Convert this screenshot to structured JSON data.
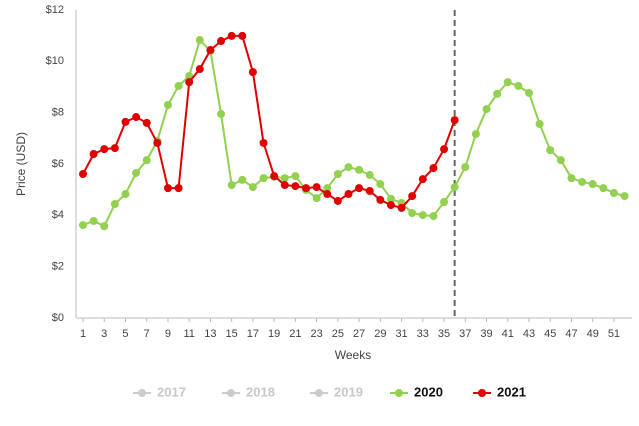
{
  "chart_data": {
    "type": "line",
    "y_label": "Price (USD)",
    "x_label": "Weeks",
    "x": [
      1,
      2,
      3,
      4,
      5,
      6,
      7,
      8,
      9,
      10,
      11,
      12,
      13,
      14,
      15,
      16,
      17,
      18,
      19,
      20,
      21,
      22,
      23,
      24,
      25,
      26,
      27,
      28,
      29,
      30,
      31,
      32,
      33,
      34,
      35,
      36,
      37,
      38,
      39,
      40,
      41,
      42,
      43,
      44,
      45,
      46,
      47,
      48,
      49,
      50,
      51,
      52
    ],
    "xlim": [
      0.34,
      52.7
    ],
    "xticks": [
      1,
      3,
      5,
      7,
      9,
      11,
      13,
      15,
      17,
      19,
      21,
      23,
      25,
      27,
      29,
      31,
      33,
      35,
      37,
      39,
      41,
      43,
      45,
      47,
      49,
      51
    ],
    "ylim": [
      0,
      12
    ],
    "yticks": [
      {
        "value": 0,
        "label": "$0"
      },
      {
        "value": 2,
        "label": "$2"
      },
      {
        "value": 4,
        "label": "$4"
      },
      {
        "value": 6,
        "label": "$6"
      },
      {
        "value": 8,
        "label": "$8"
      },
      {
        "value": 10,
        "label": "$10"
      },
      {
        "value": 12,
        "label": "$12"
      }
    ],
    "grid": false,
    "vline_x": 36,
    "legend": "bottom",
    "series": [
      {
        "name": "2017",
        "color": "#cccccc",
        "hidden": true
      },
      {
        "name": "2018",
        "color": "#cccccc",
        "hidden": true
      },
      {
        "name": "2019",
        "color": "#cccccc",
        "hidden": true
      },
      {
        "name": "2020",
        "color": "#92d050",
        "values": [
          3.62,
          3.78,
          3.58,
          4.44,
          4.83,
          5.65,
          6.15,
          6.9,
          8.3,
          9.04,
          9.43,
          10.83,
          10.4,
          7.95,
          5.18,
          5.38,
          5.1,
          5.45,
          5.5,
          5.45,
          5.53,
          4.99,
          4.67,
          5.06,
          5.61,
          5.88,
          5.77,
          5.57,
          5.22,
          4.64,
          4.48,
          4.09,
          4.01,
          3.97,
          4.52,
          5.1,
          5.88,
          7.17,
          8.14,
          8.73,
          9.19,
          9.04,
          8.77,
          7.56,
          6.54,
          6.15,
          5.45,
          5.3,
          5.22,
          5.06,
          4.87,
          4.75
        ]
      },
      {
        "name": "2021",
        "color": "#e00000",
        "values": [
          5.61,
          6.39,
          6.58,
          6.62,
          7.64,
          7.83,
          7.6,
          6.82,
          5.06,
          5.06,
          9.19,
          9.7,
          10.44,
          10.79,
          10.99,
          10.99,
          9.58,
          6.82,
          5.53,
          5.18,
          5.14,
          5.06,
          5.1,
          4.83,
          4.56,
          4.83,
          5.06,
          4.95,
          4.6,
          4.4,
          4.29,
          4.75,
          5.41,
          5.84,
          6.58,
          7.71,
          null,
          null,
          null,
          null,
          null,
          null,
          null,
          null,
          null,
          null,
          null,
          null,
          null,
          null,
          null,
          null
        ]
      }
    ]
  }
}
